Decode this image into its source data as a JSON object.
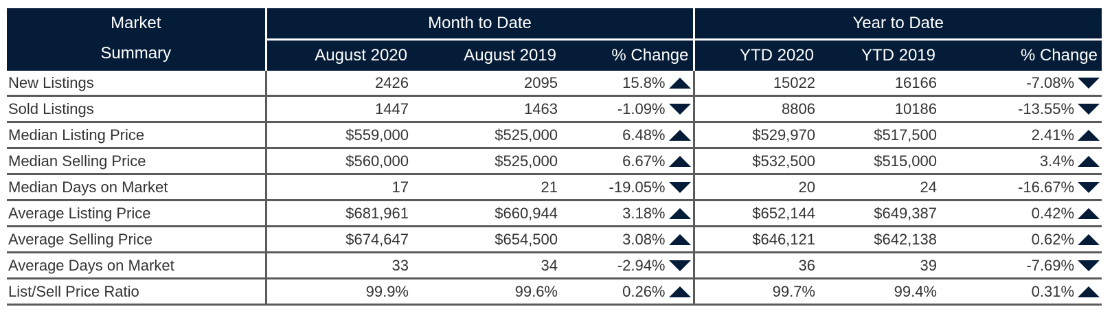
{
  "header": {
    "market_summary": [
      "Market",
      "Summary"
    ],
    "month_to_date": "Month to Date",
    "year_to_date": "Year to Date",
    "columns": [
      "August 2020",
      "August 2019",
      "% Change",
      "YTD 2020",
      "YTD 2019",
      "% Change"
    ]
  },
  "colors": {
    "header_bg": "#041c37",
    "arrow": "#041c37",
    "rule": "#5b5b5b"
  },
  "rows": [
    {
      "label": "New Listings",
      "mtd_2020": "2426",
      "mtd_2019": "2095",
      "mtd_change": "15.8%",
      "mtd_dir": "up-arrow-icon",
      "ytd_2020": "15022",
      "ytd_2019": "16166",
      "ytd_change": "-7.08%",
      "ytd_dir": "down-arrow-icon"
    },
    {
      "label": "Sold Listings",
      "mtd_2020": "1447",
      "mtd_2019": "1463",
      "mtd_change": "-1.09%",
      "mtd_dir": "down-arrow-icon",
      "ytd_2020": "8806",
      "ytd_2019": "10186",
      "ytd_change": "-13.55%",
      "ytd_dir": "down-arrow-icon"
    },
    {
      "label": "Median Listing Price",
      "mtd_2020": "$559,000",
      "mtd_2019": "$525,000",
      "mtd_change": "6.48%",
      "mtd_dir": "up-arrow-icon",
      "ytd_2020": "$529,970",
      "ytd_2019": "$517,500",
      "ytd_change": "2.41%",
      "ytd_dir": "up-arrow-icon"
    },
    {
      "label": "Median Selling Price",
      "mtd_2020": "$560,000",
      "mtd_2019": "$525,000",
      "mtd_change": "6.67%",
      "mtd_dir": "up-arrow-icon",
      "ytd_2020": "$532,500",
      "ytd_2019": "$515,000",
      "ytd_change": "3.4%",
      "ytd_dir": "up-arrow-icon"
    },
    {
      "label": "Median Days on Market",
      "mtd_2020": "17",
      "mtd_2019": "21",
      "mtd_change": "-19.05%",
      "mtd_dir": "down-arrow-icon",
      "ytd_2020": "20",
      "ytd_2019": "24",
      "ytd_change": "-16.67%",
      "ytd_dir": "down-arrow-icon"
    },
    {
      "label": "Average Listing Price",
      "mtd_2020": "$681,961",
      "mtd_2019": "$660,944",
      "mtd_change": "3.18%",
      "mtd_dir": "up-arrow-icon",
      "ytd_2020": "$652,144",
      "ytd_2019": "$649,387",
      "ytd_change": "0.42%",
      "ytd_dir": "up-arrow-icon"
    },
    {
      "label": "Average Selling Price",
      "mtd_2020": "$674,647",
      "mtd_2019": "$654,500",
      "mtd_change": "3.08%",
      "mtd_dir": "up-arrow-icon",
      "ytd_2020": "$646,121",
      "ytd_2019": "$642,138",
      "ytd_change": "0.62%",
      "ytd_dir": "up-arrow-icon"
    },
    {
      "label": "Average Days on Market",
      "mtd_2020": "33",
      "mtd_2019": "34",
      "mtd_change": "-2.94%",
      "mtd_dir": "down-arrow-icon",
      "ytd_2020": "36",
      "ytd_2019": "39",
      "ytd_change": "-7.69%",
      "ytd_dir": "down-arrow-icon"
    },
    {
      "label": "List/Sell Price Ratio",
      "mtd_2020": "99.9%",
      "mtd_2019": "99.6%",
      "mtd_change": "0.26%",
      "mtd_dir": "up-arrow-icon",
      "ytd_2020": "99.7%",
      "ytd_2019": "99.4%",
      "ytd_change": "0.31%",
      "ytd_dir": "up-arrow-icon"
    }
  ]
}
